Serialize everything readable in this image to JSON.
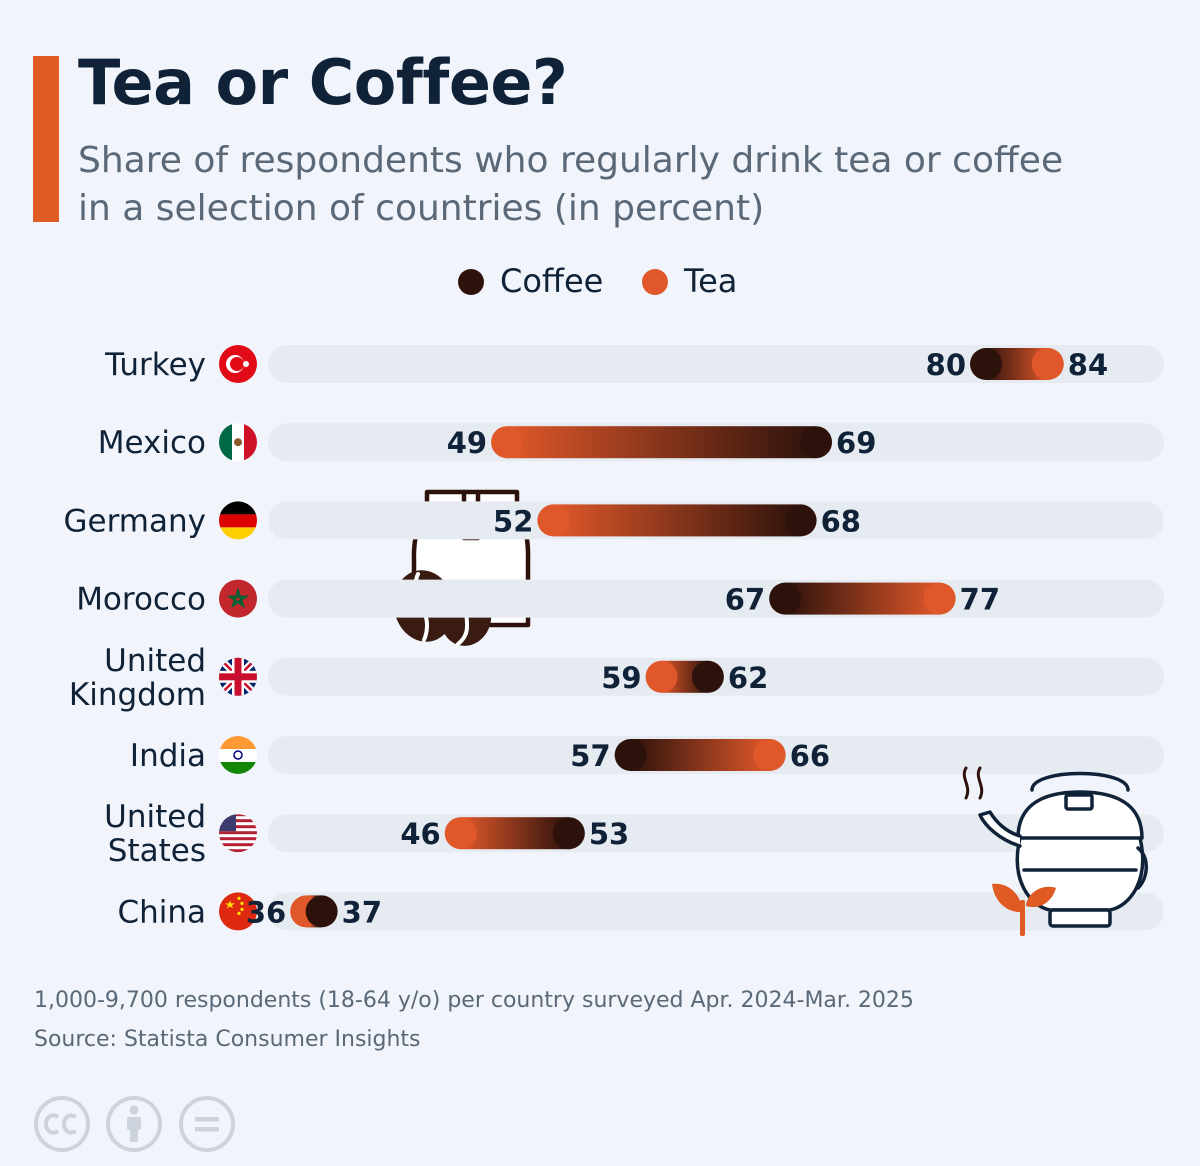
{
  "colors": {
    "accent": "#e05a24",
    "coffee": "#2d120c",
    "tea": "#e0582a",
    "track": "#e6ebf2",
    "label": "#0f2238"
  },
  "header": {
    "title": "Tea or Coffee?",
    "subtitle_line1": "Share of respondents who regularly drink tea or coffee",
    "subtitle_line2": "in a selection of countries (in percent)"
  },
  "chart_data": {
    "type": "dumbbell",
    "title": "Tea or Coffee?",
    "subtitle": "Share of respondents who regularly drink tea or coffee in a selection of countries (in percent)",
    "xlim": [
      0,
      100
    ],
    "grid": false,
    "legend": {
      "placement": "top-center",
      "entries": [
        "Coffee",
        "Tea"
      ]
    },
    "categories": [
      "Turkey",
      "Mexico",
      "Germany",
      "Morocco",
      "United Kingdom",
      "India",
      "United States",
      "China"
    ],
    "category_lines": [
      [
        "Turkey"
      ],
      [
        "Mexico"
      ],
      [
        "Germany"
      ],
      [
        "Morocco"
      ],
      [
        "United",
        "Kingdom"
      ],
      [
        "India"
      ],
      [
        "United",
        "States"
      ],
      [
        "China"
      ]
    ],
    "flags": [
      "turkey-flag-icon",
      "mexico-flag-icon",
      "germany-flag-icon",
      "morocco-flag-icon",
      "united-kingdom-flag-icon",
      "india-flag-icon",
      "united-states-flag-icon",
      "china-flag-icon"
    ],
    "series": [
      {
        "name": "Coffee",
        "values": [
          80,
          69,
          68,
          67,
          62,
          57,
          53,
          37
        ]
      },
      {
        "name": "Tea",
        "values": [
          84,
          49,
          52,
          77,
          59,
          66,
          46,
          36
        ]
      }
    ]
  },
  "footer": {
    "note": "1,000-9,700 respondents (18-64 y/o) per country surveyed Apr. 2024-Mar. 2025",
    "source": "Source: Statista Consumer Insights"
  },
  "icons": [
    "coffee-bag-icon",
    "coffee-bean-icon",
    "teapot-icon",
    "leaf-icon",
    "cc-license-icon",
    "attribution-icon",
    "no-derivatives-icon"
  ]
}
